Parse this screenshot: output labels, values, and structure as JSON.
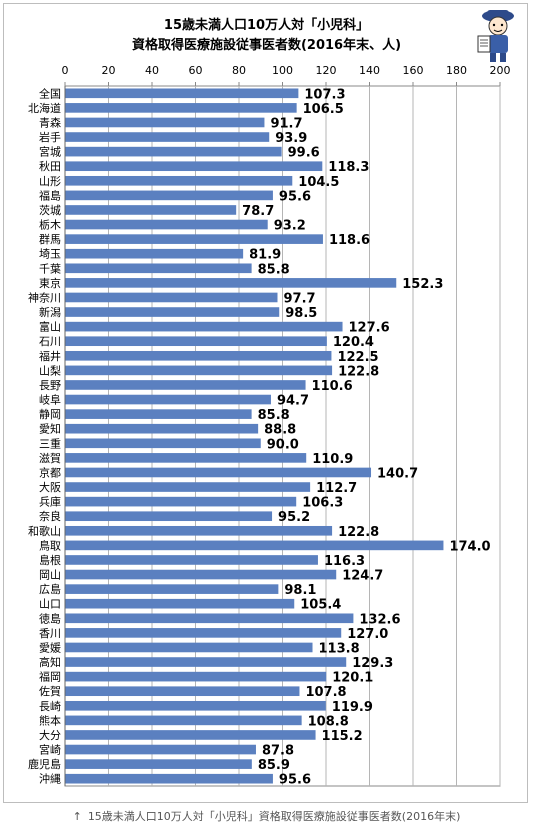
{
  "chart_data": {
    "type": "bar",
    "orientation": "horizontal",
    "title_lines": [
      "15歳未満人口10万人対「小児科」",
      "資格取得医療施設従事医者数(2016年末、人)"
    ],
    "xlim": [
      0,
      200
    ],
    "xticks": [
      0,
      20,
      40,
      60,
      80,
      100,
      120,
      140,
      160,
      180,
      200
    ],
    "grid": true,
    "legend": "none",
    "bar_color": "#5b80c0",
    "categories": [
      "全国",
      "北海道",
      "青森",
      "岩手",
      "宮城",
      "秋田",
      "山形",
      "福島",
      "茨城",
      "栃木",
      "群馬",
      "埼玉",
      "千葉",
      "東京",
      "神奈川",
      "新潟",
      "富山",
      "石川",
      "福井",
      "山梨",
      "長野",
      "岐阜",
      "静岡",
      "愛知",
      "三重",
      "滋賀",
      "京都",
      "大阪",
      "兵庫",
      "奈良",
      "和歌山",
      "鳥取",
      "島根",
      "岡山",
      "広島",
      "山口",
      "徳島",
      "香川",
      "愛媛",
      "高知",
      "福岡",
      "佐賀",
      "長崎",
      "熊本",
      "大分",
      "宮崎",
      "鹿児島",
      "沖縄"
    ],
    "values": [
      107.3,
      106.5,
      91.7,
      93.9,
      99.6,
      118.3,
      104.5,
      95.6,
      78.7,
      93.2,
      118.6,
      81.9,
      85.8,
      152.3,
      97.7,
      98.5,
      127.6,
      120.4,
      122.5,
      122.8,
      110.6,
      94.7,
      85.8,
      88.8,
      90.0,
      110.9,
      140.7,
      112.7,
      106.3,
      95.2,
      122.8,
      174.0,
      116.3,
      124.7,
      98.1,
      105.4,
      132.6,
      127.0,
      113.8,
      129.3,
      120.1,
      107.8,
      119.9,
      108.8,
      115.2,
      87.8,
      85.9,
      95.6
    ],
    "value_labels": [
      "107.3",
      "106.5",
      "91.7",
      "93.9",
      "99.6",
      "118.3",
      "104.5",
      "95.6",
      "78.7",
      "93.2",
      "118.6",
      "81.9",
      "85.8",
      "152.3",
      "97.7",
      "98.5",
      "127.6",
      "120.4",
      "122.5",
      "122.8",
      "110.6",
      "94.7",
      "85.8",
      "88.8",
      "90.0",
      "110.9",
      "140.7",
      "112.7",
      "106.3",
      "95.2",
      "122.8",
      "174.0",
      "116.3",
      "124.7",
      "98.1",
      "105.4",
      "132.6",
      "127.0",
      "113.8",
      "129.3",
      "120.1",
      "107.8",
      "119.9",
      "108.8",
      "115.2",
      "87.8",
      "85.9",
      "95.6"
    ]
  },
  "caption": {
    "arrow": "↑",
    "text": "15歳未満人口10万人対「小児科」資格取得医療施設従事医者数(2016年末)"
  },
  "icons": {
    "mascot": "newspaper-boy-mascot-icon"
  }
}
